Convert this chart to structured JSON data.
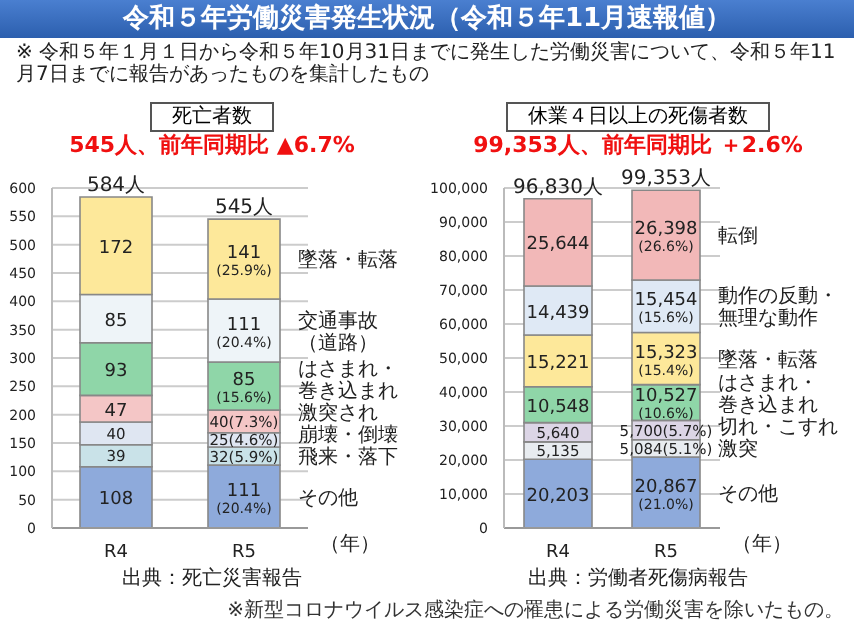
{
  "chart_data": [
    {
      "type": "other",
      "title": "令和５年労働災害発生状況（令和５年11月速報値）",
      "subtitle": "※ 令和５年１月１日から令和５年10月31日までに発生した労働災害について、令和５年11月7日までに報告があったものを集計したもの"
    },
    {
      "type": "bar",
      "stacked": true,
      "title": "死亡者数",
      "subtitle": "545人、前年同期比 ▲6.7%",
      "xlabel": "（年）",
      "categories": [
        "R4",
        "R5"
      ],
      "ylim": [
        0,
        600
      ],
      "yticks": [
        0,
        50,
        100,
        150,
        200,
        250,
        300,
        350,
        400,
        450,
        500,
        550,
        600
      ],
      "grid": "y",
      "totals": [
        "584人",
        "545人"
      ],
      "annotations": [
        "出典：死亡災害報告"
      ],
      "series": [
        {
          "name": "その他",
          "color": "#8eaadb",
          "values": [
            108,
            111
          ],
          "value_labels": [
            "108",
            "111\n(20.4%)"
          ]
        },
        {
          "name": "飛来・落下",
          "color": "#c9e2e8",
          "values": [
            39,
            32
          ],
          "value_labels": [
            "39",
            "32(5.9%)"
          ]
        },
        {
          "name": "崩壊・倒壊",
          "color": "#dfe6f2",
          "values": [
            40,
            25
          ],
          "value_labels": [
            "40",
            "25(4.6%)"
          ]
        },
        {
          "name": "激突され",
          "color": "#f4c6c6",
          "values": [
            47,
            40
          ],
          "value_labels": [
            "47",
            "40(7.3%)"
          ]
        },
        {
          "name": "はさまれ・巻き込まれ",
          "color": "#8fd6a8",
          "values": [
            93,
            85
          ],
          "value_labels": [
            "93",
            "85\n(15.6%)"
          ]
        },
        {
          "name": "交通事故（道路）",
          "color": "#eef4f8",
          "values": [
            85,
            111
          ],
          "value_labels": [
            "85",
            "111\n(20.4%)"
          ]
        },
        {
          "name": "墜落・転落",
          "color": "#fde89a",
          "values": [
            172,
            141
          ],
          "value_labels": [
            "172",
            "141\n(25.9%)"
          ]
        }
      ]
    },
    {
      "type": "bar",
      "stacked": true,
      "title": "休業４日以上の死傷者数",
      "subtitle": "99,353人、前年同期比 ＋2.6%",
      "xlabel": "（年）",
      "categories": [
        "R4",
        "R5"
      ],
      "ylim": [
        0,
        100000
      ],
      "yticks": [
        0,
        {
          "value": 10000,
          "label": "10,000"
        },
        {
          "value": 20000,
          "label": "20,000"
        },
        {
          "value": 30000,
          "label": "30,000"
        },
        {
          "value": 40000,
          "label": "40,000"
        },
        {
          "value": 50000,
          "label": "50,000"
        },
        {
          "value": 60000,
          "label": "60,000"
        },
        {
          "value": 70000,
          "label": "70,000"
        },
        {
          "value": 80000,
          "label": "80,000"
        },
        {
          "value": 90000,
          "label": "90,000"
        },
        {
          "value": 100000,
          "label": "100,000"
        }
      ],
      "grid": "y",
      "totals": [
        "96,830人",
        "99,353人"
      ],
      "annotations": [
        "出典：労働者死傷病報告",
        "※新型コロナウイルス感染症への罹患による労働災害を除いたもの。"
      ],
      "series": [
        {
          "name": "その他",
          "color": "#8eaadb",
          "values": [
            20203,
            20867
          ],
          "value_labels": [
            "20,203",
            "20,867\n(21.0%)"
          ]
        },
        {
          "name": "激突",
          "color": "#e8ecf0",
          "values": [
            5135,
            5084
          ],
          "value_labels": [
            "5,135",
            "5,084(5.1%)"
          ]
        },
        {
          "name": "切れ・こすれ",
          "color": "#dcd5e6",
          "values": [
            5640,
            5700
          ],
          "value_labels": [
            "5,640",
            "5,700(5.7%)"
          ]
        },
        {
          "name": "はさまれ・巻き込まれ",
          "color": "#8fd6a8",
          "values": [
            10548,
            10527
          ],
          "value_labels": [
            "10,548",
            "10,527\n(10.6%)"
          ]
        },
        {
          "name": "墜落・転落",
          "color": "#fde89a",
          "values": [
            15221,
            15323
          ],
          "value_labels": [
            "15,221",
            "15,323\n(15.4%)"
          ]
        },
        {
          "name": "動作の反動・無理な動作",
          "color": "#dfe9f5",
          "values": [
            14439,
            15454
          ],
          "value_labels": [
            "14,439",
            "15,454\n(15.6%)"
          ]
        },
        {
          "name": "転倒",
          "color": "#f2b8b8",
          "values": [
            25644,
            26398
          ],
          "value_labels": [
            "25,644",
            "26,398\n(26.6%)"
          ]
        }
      ]
    }
  ]
}
